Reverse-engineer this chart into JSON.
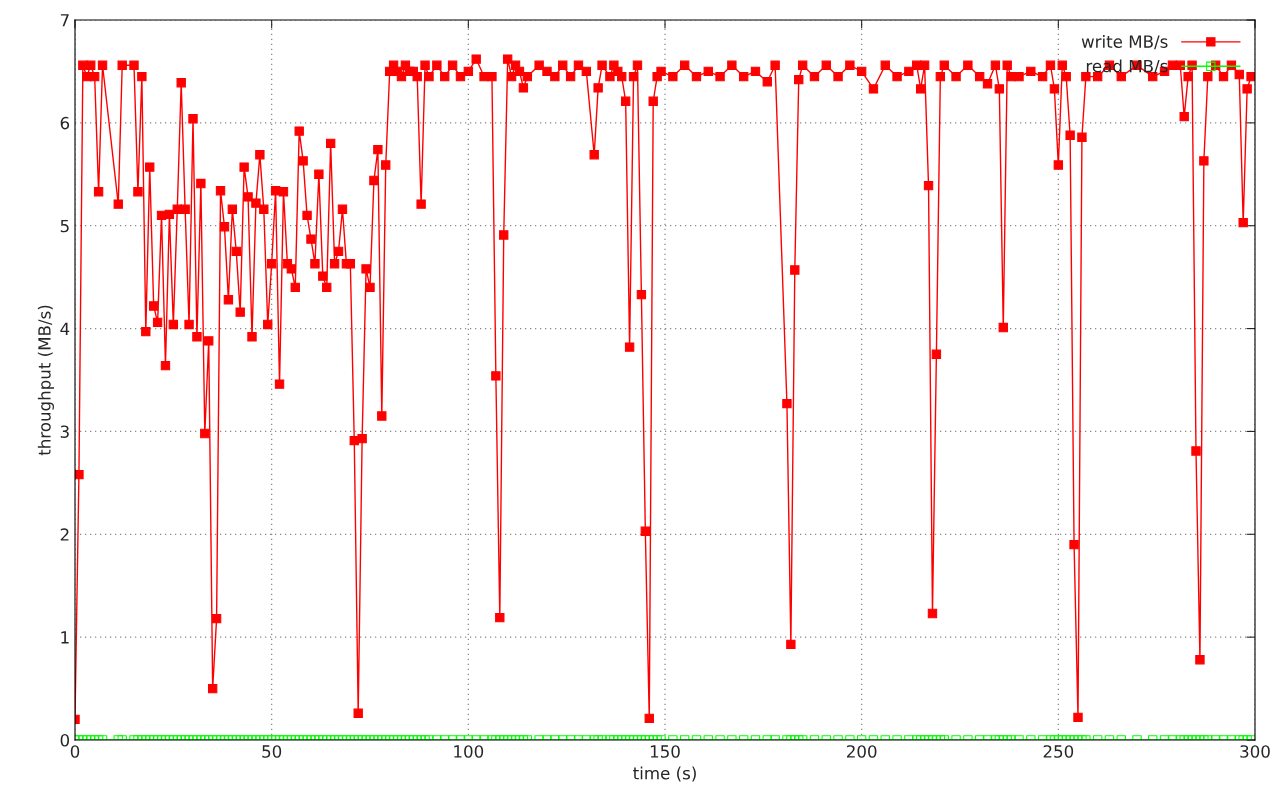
{
  "chart_data": {
    "type": "line",
    "xlabel": "time (s)",
    "ylabel": "throughput (MB/s)",
    "x": [
      0,
      1,
      2,
      3,
      4,
      5,
      6,
      7,
      11,
      12,
      15,
      16,
      17,
      18,
      19,
      20,
      21,
      22,
      23,
      24,
      25,
      26,
      27,
      28,
      29,
      30,
      31,
      32,
      33,
      34,
      35,
      36,
      37,
      38,
      39,
      40,
      41,
      42,
      43,
      44,
      45,
      46,
      47,
      48,
      49,
      50,
      51,
      52,
      53,
      54,
      55,
      56,
      57,
      58,
      59,
      60,
      61,
      62,
      63,
      64,
      65,
      66,
      67,
      68,
      69,
      70,
      71,
      72,
      73,
      74,
      75,
      76,
      77,
      78,
      79,
      80,
      81,
      82,
      83,
      84,
      85,
      86,
      87,
      88,
      89,
      90,
      92,
      94,
      96,
      98,
      100,
      102,
      104,
      106,
      107,
      108,
      109,
      110,
      111,
      112,
      113,
      114,
      115,
      118,
      120,
      122,
      124,
      126,
      128,
      130,
      132,
      133,
      134,
      136,
      137,
      138,
      139,
      140,
      141,
      142,
      143,
      144,
      145,
      146,
      147,
      148,
      149,
      152,
      155,
      158,
      161,
      164,
      167,
      170,
      173,
      176,
      178,
      181,
      182,
      183,
      184,
      185,
      188,
      191,
      194,
      197,
      200,
      203,
      206,
      209,
      212,
      214,
      215,
      216,
      217,
      218,
      219,
      220,
      221,
      224,
      227,
      230,
      232,
      234,
      235,
      236,
      237,
      238,
      240,
      243,
      246,
      248,
      249,
      250,
      251,
      252,
      253,
      254,
      255,
      256,
      257,
      260,
      263,
      266,
      270,
      274,
      277,
      279,
      281,
      282,
      283,
      284,
      285,
      286,
      287,
      288,
      290,
      292,
      294,
      296,
      297,
      298,
      299
    ],
    "series": [
      {
        "name": "write MB/s",
        "color": "#ff0000",
        "marker": "square",
        "values": [
          0.2,
          2.58,
          6.56,
          6.45,
          6.56,
          6.45,
          5.33,
          6.56,
          5.21,
          6.56,
          6.56,
          5.33,
          6.45,
          3.97,
          5.57,
          4.22,
          4.06,
          5.1,
          3.64,
          5.11,
          4.04,
          5.16,
          6.39,
          5.16,
          4.04,
          6.04,
          3.92,
          5.41,
          2.98,
          3.88,
          0.5,
          1.18,
          5.34,
          4.99,
          4.28,
          5.16,
          4.75,
          4.16,
          5.57,
          5.28,
          3.92,
          5.22,
          5.69,
          5.16,
          4.04,
          4.63,
          5.34,
          3.46,
          5.33,
          4.63,
          4.58,
          4.4,
          5.92,
          5.63,
          5.1,
          4.87,
          4.63,
          5.5,
          4.51,
          4.4,
          5.8,
          4.63,
          4.75,
          5.16,
          4.63,
          4.63,
          2.91,
          0.26,
          2.93,
          4.58,
          4.4,
          5.44,
          5.74,
          3.15,
          5.59,
          6.5,
          6.56,
          6.5,
          6.45,
          6.56,
          6.5,
          6.5,
          6.45,
          5.21,
          6.56,
          6.45,
          6.56,
          6.45,
          6.56,
          6.45,
          6.5,
          6.62,
          6.45,
          6.45,
          3.54,
          1.19,
          4.91,
          6.62,
          6.45,
          6.56,
          6.5,
          6.34,
          6.45,
          6.56,
          6.5,
          6.45,
          6.56,
          6.45,
          6.56,
          6.5,
          5.69,
          6.34,
          6.56,
          6.45,
          6.56,
          6.5,
          6.45,
          6.21,
          3.82,
          6.45,
          6.56,
          4.33,
          2.03,
          0.21,
          6.21,
          6.45,
          6.5,
          6.45,
          6.56,
          6.45,
          6.5,
          6.45,
          6.56,
          6.45,
          6.5,
          6.4,
          6.56,
          3.27,
          0.93,
          4.57,
          6.42,
          6.56,
          6.45,
          6.56,
          6.45,
          6.56,
          6.5,
          6.33,
          6.56,
          6.45,
          6.5,
          6.56,
          6.33,
          6.56,
          5.39,
          1.23,
          3.75,
          6.45,
          6.56,
          6.45,
          6.56,
          6.45,
          6.38,
          6.56,
          6.33,
          4.01,
          6.56,
          6.45,
          6.45,
          6.5,
          6.45,
          6.56,
          6.33,
          5.59,
          6.56,
          6.45,
          5.88,
          1.9,
          0.22,
          5.86,
          6.45,
          6.45,
          6.56,
          6.45,
          6.56,
          6.45,
          6.5,
          6.56,
          6.56,
          6.06,
          6.45,
          6.56,
          2.81,
          0.78,
          5.63,
          6.45,
          6.56,
          6.45,
          6.56,
          6.47,
          5.03,
          6.33,
          6.45
        ]
      },
      {
        "name": "read MB/s",
        "color": "#00ff00",
        "marker": "square",
        "values": [
          0,
          0,
          0,
          0,
          0,
          0,
          0,
          0,
          0,
          0,
          0,
          0,
          0,
          0,
          0,
          0,
          0,
          0,
          0,
          0,
          0,
          0,
          0,
          0,
          0,
          0,
          0,
          0,
          0,
          0,
          0,
          0,
          0,
          0,
          0,
          0,
          0,
          0,
          0,
          0,
          0,
          0,
          0,
          0,
          0,
          0,
          0,
          0,
          0,
          0,
          0,
          0,
          0,
          0,
          0,
          0,
          0,
          0,
          0,
          0,
          0,
          0,
          0,
          0,
          0,
          0,
          0,
          0,
          0,
          0,
          0,
          0,
          0,
          0,
          0,
          0,
          0,
          0,
          0,
          0,
          0,
          0,
          0,
          0,
          0,
          0,
          0,
          0,
          0,
          0,
          0,
          0,
          0,
          0,
          0,
          0,
          0,
          0,
          0,
          0,
          0,
          0,
          0,
          0,
          0,
          0,
          0,
          0,
          0,
          0,
          0,
          0,
          0,
          0,
          0,
          0,
          0,
          0,
          0,
          0,
          0,
          0,
          0,
          0,
          0,
          0,
          0,
          0,
          0,
          0,
          0,
          0,
          0,
          0,
          0,
          0,
          0,
          0,
          0,
          0,
          0,
          0,
          0,
          0,
          0,
          0,
          0,
          0,
          0,
          0,
          0,
          0,
          0,
          0,
          0,
          0,
          0,
          0,
          0,
          0,
          0,
          0,
          0,
          0,
          0,
          0,
          0,
          0,
          0,
          0,
          0,
          0,
          0,
          0,
          0,
          0,
          0,
          0,
          0,
          0,
          0,
          0,
          0,
          0,
          0,
          0,
          0,
          0,
          0,
          0,
          0,
          0,
          0,
          0,
          0,
          0,
          0,
          0,
          0,
          0,
          0,
          0,
          0
        ]
      }
    ],
    "xlim": [
      0,
      300
    ],
    "ylim": [
      0,
      7
    ],
    "xticks": [
      0,
      50,
      100,
      150,
      200,
      250,
      300
    ],
    "yticks": [
      0,
      1,
      2,
      3,
      4,
      5,
      6,
      7
    ],
    "grid": true,
    "legend": "top right",
    "line_style": "solid"
  }
}
